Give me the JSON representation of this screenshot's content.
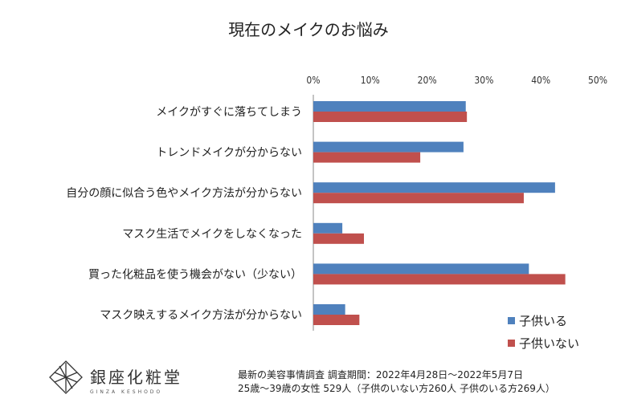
{
  "chart_data": {
    "type": "bar",
    "orientation": "horizontal",
    "title": "現在のメイクのお悩み",
    "categories": [
      "メイクがすぐに落ちてしまう",
      "トレンドメイクが分からない",
      "自分の顔に似合う色やメイク方法が分からない",
      "マスク生活でメイクをしなくなった",
      "買った化粧品を使う機会がない（少ない）",
      "マスク映えするメイク方法が分からない"
    ],
    "series": [
      {
        "name": "子供いる",
        "color": "#4F81BD",
        "values": [
          26.8,
          26.4,
          42.5,
          5.1,
          37.9,
          5.6
        ]
      },
      {
        "name": "子供いない",
        "color": "#C0504D",
        "values": [
          27.0,
          18.8,
          37.0,
          8.9,
          44.3,
          8.1
        ]
      }
    ],
    "xlim": [
      0,
      50
    ],
    "xticks": [
      "0%",
      "10%",
      "20%",
      "30%",
      "40%",
      "50%"
    ],
    "legend_position": "bottom-right"
  },
  "footer": {
    "line1": "最新の美容事情調査  調査期間：2022年4月28日〜2022年5月7日",
    "line2": "25歳〜39歳の女性  529人（子供のいない方260人    子供のいる方269人）"
  },
  "logo": {
    "name": "銀座化粧堂",
    "sub": "GINZA KESHODO"
  }
}
